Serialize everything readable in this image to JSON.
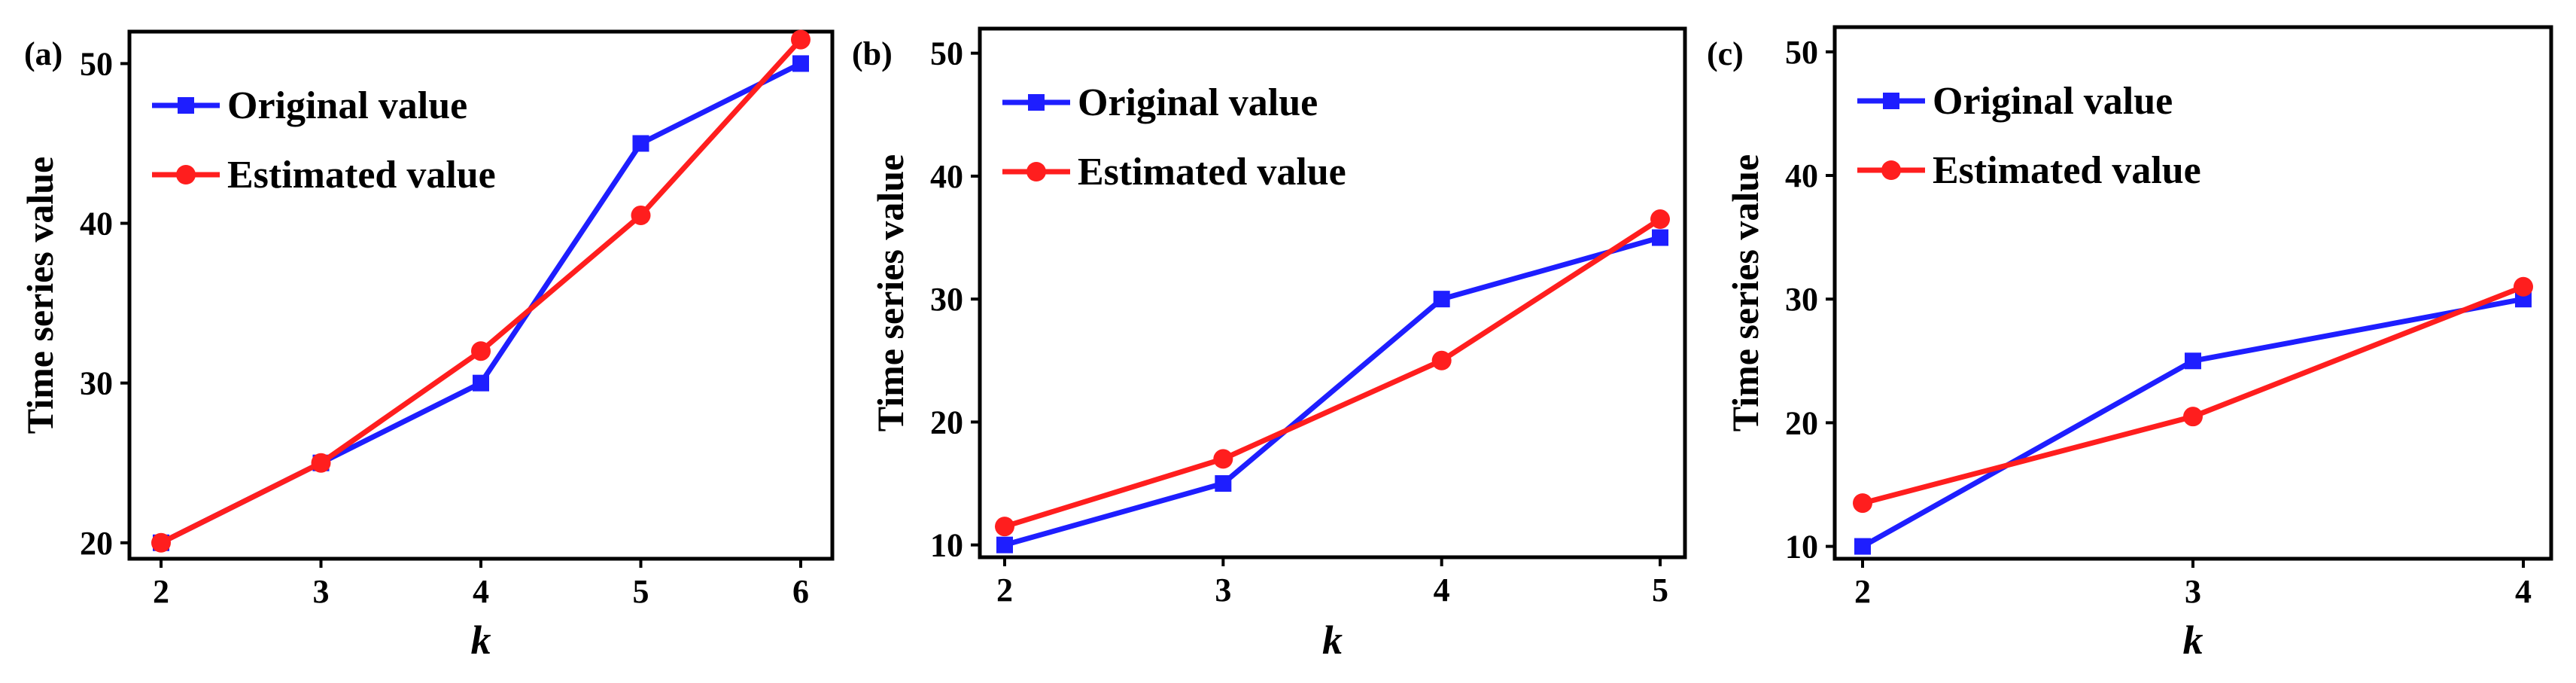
{
  "colors": {
    "original": "#1e1eff",
    "estimated": "#ff1e1e",
    "axis": "#000000"
  },
  "legend": {
    "original": "Original value",
    "estimated": "Estimated value"
  },
  "chart_data": [
    {
      "type": "line",
      "panel_label": "(a)",
      "xlabel": "k",
      "ylabel": "Time series value",
      "x": [
        2,
        3,
        4,
        5,
        6
      ],
      "xticks": [
        2,
        3,
        4,
        5,
        6
      ],
      "ylim": [
        19,
        52
      ],
      "yticks": [
        20,
        30,
        40,
        50
      ],
      "grid": false,
      "legend_position": "top-left",
      "series": [
        {
          "name": "Original value",
          "marker": "square",
          "values": [
            20,
            25,
            30,
            45,
            50
          ]
        },
        {
          "name": "Estimated value",
          "marker": "circle",
          "values": [
            20,
            25,
            32,
            40.5,
            51.5
          ]
        }
      ]
    },
    {
      "type": "line",
      "panel_label": "(b)",
      "xlabel": "k",
      "ylabel": "Time series value",
      "x": [
        2,
        3,
        4,
        5
      ],
      "xticks": [
        2,
        3,
        4,
        5
      ],
      "ylim": [
        9,
        52
      ],
      "yticks": [
        10,
        20,
        30,
        40,
        50
      ],
      "grid": false,
      "legend_position": "top-left",
      "series": [
        {
          "name": "Original value",
          "marker": "square",
          "values": [
            10,
            15,
            30,
            35
          ]
        },
        {
          "name": "Estimated value",
          "marker": "circle",
          "values": [
            11.5,
            17,
            25,
            36.5
          ]
        }
      ]
    },
    {
      "type": "line",
      "panel_label": "(c)",
      "xlabel": "k",
      "ylabel": "Time series value",
      "x": [
        2,
        3,
        4
      ],
      "xticks": [
        2,
        3,
        4
      ],
      "ylim": [
        9,
        52
      ],
      "yticks": [
        10,
        20,
        30,
        40,
        50
      ],
      "grid": false,
      "legend_position": "top-left",
      "series": [
        {
          "name": "Original value",
          "marker": "square",
          "values": [
            10,
            25,
            30
          ]
        },
        {
          "name": "Estimated value",
          "marker": "circle",
          "values": [
            13.5,
            20.5,
            31
          ]
        }
      ]
    }
  ]
}
